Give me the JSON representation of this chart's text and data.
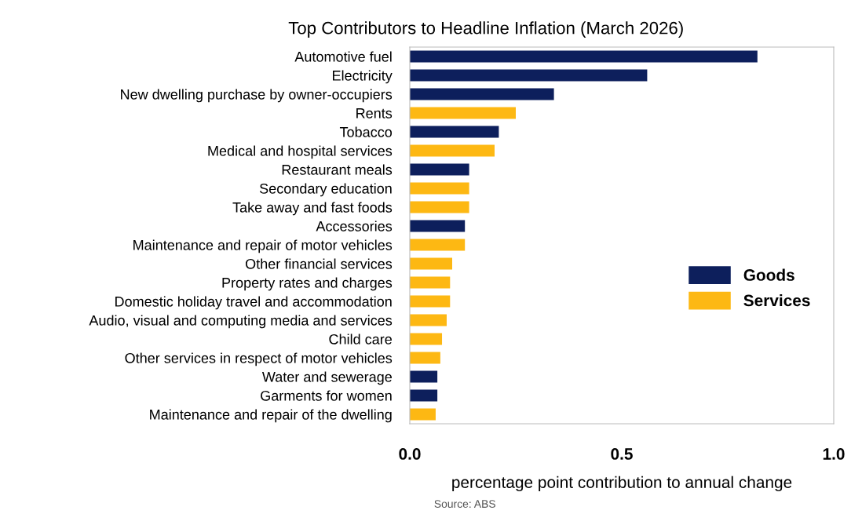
{
  "chart_data": {
    "type": "bar",
    "orientation": "horizontal",
    "title": "Top Contributors to Headline Inflation (March 2026)",
    "xlabel": "percentage point contribution to annual change",
    "categories": [
      "Automotive fuel",
      "Electricity",
      "New dwelling purchase by owner-occupiers",
      "Rents",
      "Tobacco",
      "Medical and hospital services",
      "Restaurant meals",
      "Secondary education",
      "Take away and fast foods",
      "Accessories",
      "Maintenance and repair of motor vehicles",
      "Other financial services",
      "Property rates and charges",
      "Domestic holiday travel and accommodation",
      "Audio, visual and computing media and services",
      "Child care",
      "Other services in respect of motor vehicles",
      "Water and sewerage",
      "Garments for women",
      "Maintenance and repair of the dwelling"
    ],
    "series": [
      {
        "name": "Goods",
        "color": "#0d1f5c",
        "values": [
          0.82,
          0.56,
          0.34,
          null,
          0.21,
          null,
          0.14,
          null,
          null,
          0.13,
          null,
          null,
          null,
          null,
          null,
          null,
          null,
          0.065,
          0.065,
          null
        ]
      },
      {
        "name": "Services",
        "color": "#fdb813",
        "values": [
          null,
          null,
          null,
          0.25,
          null,
          0.2,
          null,
          0.14,
          0.14,
          null,
          0.13,
          0.1,
          0.095,
          0.095,
          0.087,
          0.076,
          0.072,
          null,
          null,
          0.061
        ]
      }
    ],
    "xlim": [
      0,
      1
    ],
    "xticks": [
      {
        "value": 0,
        "label": "0.0"
      },
      {
        "value": 0.5,
        "label": "0.5"
      },
      {
        "value": 1,
        "label": "1.0"
      }
    ],
    "grid": false,
    "legend": "right",
    "annotations": [
      "Source: ABS"
    ]
  }
}
